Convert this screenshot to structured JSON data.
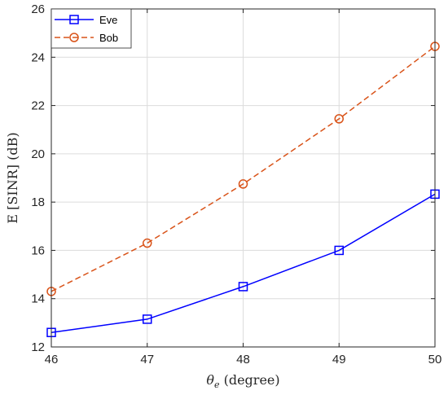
{
  "chart_data": {
    "type": "line",
    "x": [
      46,
      47,
      48,
      49,
      50
    ],
    "xlim": [
      46,
      50
    ],
    "ylim": [
      12,
      26
    ],
    "xticks": [
      46,
      47,
      48,
      49,
      50
    ],
    "yticks": [
      12,
      14,
      16,
      18,
      20,
      22,
      24,
      26
    ],
    "xlabel": "θe (degree)",
    "ylabel": "E [SINR] (dB)",
    "grid": true,
    "legend_position": "top-left",
    "series": [
      {
        "name": "Eve",
        "values": [
          12.6,
          13.15,
          14.5,
          16.0,
          18.33
        ],
        "color": "#0000ff",
        "line_style": "solid",
        "marker": "square"
      },
      {
        "name": "Bob",
        "values": [
          14.3,
          16.3,
          18.75,
          21.45,
          24.45
        ],
        "color": "#d95319",
        "line_style": "dashed",
        "marker": "circle"
      }
    ]
  }
}
